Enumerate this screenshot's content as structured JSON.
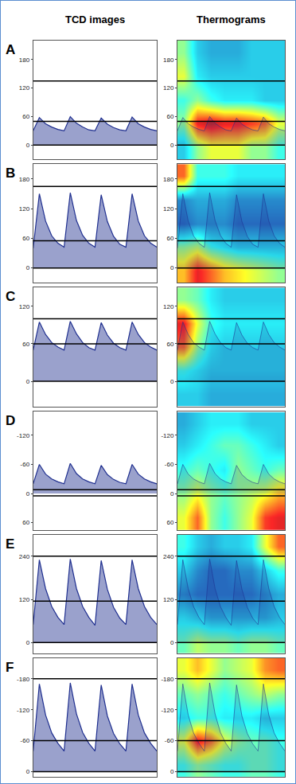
{
  "chart_data": [
    {
      "type": "line",
      "title": "TCD images",
      "annotations": [
        "A"
      ],
      "tick_labels": "y",
      "grid": false,
      "x": [
        0,
        0.2,
        0.4,
        0.6,
        0.8,
        1,
        1.2,
        1.4,
        1.6,
        1.8,
        2,
        2.2,
        2.4,
        2.6,
        2.8,
        3,
        3.2,
        3.4,
        3.6,
        3.8,
        4
      ],
      "xlim": [
        0,
        4
      ],
      "ylim": [
        -30,
        220
      ],
      "yticks": [
        0,
        60,
        120,
        180
      ],
      "reference_lines": [
        135,
        50,
        0
      ],
      "values": [
        30,
        58,
        45,
        38,
        33,
        30,
        60,
        46,
        38,
        32,
        30,
        57,
        44,
        37,
        32,
        30,
        59,
        45,
        38,
        33,
        30
      ],
      "color": "#1f2f8f"
    },
    {
      "type": "heatmap",
      "title": "Thermograms",
      "tick_labels": "y",
      "grid": false,
      "x": [
        0,
        0.2,
        0.4,
        0.6,
        0.8,
        1,
        1.2,
        1.4,
        1.6,
        1.8,
        2,
        2.2,
        2.4,
        2.6,
        2.8,
        3,
        3.2,
        3.4,
        3.6,
        3.8,
        4
      ],
      "xlim": [
        0,
        4
      ],
      "ylim": [
        -30,
        220
      ],
      "yticks": [
        0,
        60,
        120,
        180
      ],
      "reference_lines": [
        135,
        50,
        0
      ],
      "values": [
        30,
        58,
        45,
        38,
        33,
        30,
        60,
        46,
        38,
        32,
        30,
        57,
        44,
        37,
        32,
        30,
        59,
        45,
        38,
        33,
        30
      ],
      "color": "#1f2f8f",
      "heat_x": [
        0.25,
        0.75,
        1.25,
        1.75,
        2.25,
        2.75,
        3.25,
        3.75
      ],
      "heat_y": [
        -5,
        45,
        95,
        145,
        195
      ],
      "zlim": [
        0,
        1
      ],
      "z": [
        [
          0.3,
          0.5,
          0.6,
          0.6,
          0.6,
          0.5,
          0.5,
          0.4
        ],
        [
          0.5,
          0.9,
          0.95,
          0.9,
          0.9,
          0.85,
          0.8,
          0.6
        ],
        [
          0.4,
          0.5,
          0.4,
          0.35,
          0.35,
          0.35,
          0.3,
          0.3
        ],
        [
          0.6,
          0.35,
          0.3,
          0.3,
          0.3,
          0.3,
          0.3,
          0.3
        ],
        [
          0.5,
          0.3,
          0.25,
          0.25,
          0.25,
          0.3,
          0.3,
          0.3
        ]
      ]
    },
    {
      "type": "line",
      "annotations": [
        "B"
      ],
      "tick_labels": "y",
      "grid": false,
      "x": [
        0,
        0.2,
        0.4,
        0.6,
        0.8,
        1,
        1.2,
        1.4,
        1.6,
        1.8,
        2,
        2.2,
        2.4,
        2.6,
        2.8,
        3,
        3.2,
        3.4,
        3.6,
        3.8,
        4
      ],
      "xlim": [
        0,
        4
      ],
      "ylim": [
        -30,
        210
      ],
      "yticks": [
        0,
        60,
        120,
        180
      ],
      "reference_lines": [
        165,
        55,
        0
      ],
      "values": [
        40,
        150,
        95,
        65,
        50,
        42,
        152,
        96,
        66,
        50,
        42,
        148,
        94,
        64,
        48,
        42,
        150,
        95,
        65,
        50,
        42
      ],
      "color": "#1f2f8f"
    },
    {
      "type": "heatmap",
      "tick_labels": "y",
      "grid": false,
      "x": [
        0,
        0.2,
        0.4,
        0.6,
        0.8,
        1,
        1.2,
        1.4,
        1.6,
        1.8,
        2,
        2.2,
        2.4,
        2.6,
        2.8,
        3,
        3.2,
        3.4,
        3.6,
        3.8,
        4
      ],
      "xlim": [
        0,
        4
      ],
      "ylim": [
        -30,
        210
      ],
      "yticks": [
        0,
        60,
        120,
        180
      ],
      "reference_lines": [
        165,
        55,
        0
      ],
      "values": [
        40,
        150,
        95,
        65,
        50,
        42,
        152,
        96,
        66,
        50,
        42,
        148,
        94,
        64,
        48,
        42,
        150,
        95,
        65,
        50,
        42
      ],
      "color": "#1f2f8f",
      "heat_x": [
        0.25,
        0.75,
        1.25,
        1.75,
        2.25,
        2.75,
        3.25,
        3.75
      ],
      "heat_y": [
        -6,
        42,
        90,
        138,
        186
      ],
      "zlim": [
        0,
        1
      ],
      "z": [
        [
          0.7,
          0.9,
          0.8,
          0.7,
          0.65,
          0.6,
          0.55,
          0.5
        ],
        [
          0.5,
          0.55,
          0.4,
          0.35,
          0.3,
          0.3,
          0.3,
          0.3
        ],
        [
          0.15,
          0.2,
          0.2,
          0.2,
          0.15,
          0.15,
          0.15,
          0.15
        ],
        [
          0.2,
          0.25,
          0.25,
          0.25,
          0.2,
          0.2,
          0.2,
          0.2
        ],
        [
          0.8,
          0.4,
          0.4,
          0.4,
          0.35,
          0.35,
          0.35,
          0.35
        ]
      ]
    },
    {
      "type": "line",
      "annotations": [
        "C"
      ],
      "tick_labels": "y",
      "grid": false,
      "x": [
        0,
        0.2,
        0.4,
        0.6,
        0.8,
        1,
        1.2,
        1.4,
        1.6,
        1.8,
        2,
        2.2,
        2.4,
        2.6,
        2.8,
        3,
        3.2,
        3.4,
        3.6,
        3.8,
        4
      ],
      "xlim": [
        0,
        4
      ],
      "ylim": [
        -40,
        150
      ],
      "yticks": [
        0,
        60,
        120
      ],
      "reference_lines": [
        100,
        60,
        0
      ],
      "values": [
        50,
        95,
        75,
        62,
        55,
        50,
        96,
        76,
        62,
        54,
        50,
        94,
        74,
        61,
        54,
        50,
        95,
        75,
        62,
        55,
        50
      ],
      "color": "#1f2f8f"
    },
    {
      "type": "heatmap",
      "tick_labels": "y",
      "grid": false,
      "x": [
        0,
        0.2,
        0.4,
        0.6,
        0.8,
        1,
        1.2,
        1.4,
        1.6,
        1.8,
        2,
        2.2,
        2.4,
        2.6,
        2.8,
        3,
        3.2,
        3.4,
        3.6,
        3.8,
        4
      ],
      "xlim": [
        0,
        4
      ],
      "ylim": [
        -40,
        150
      ],
      "yticks": [
        0,
        60,
        120
      ],
      "reference_lines": [
        100,
        60,
        0
      ],
      "values": [
        50,
        95,
        75,
        62,
        55,
        50,
        96,
        76,
        62,
        54,
        50,
        94,
        74,
        61,
        54,
        50,
        95,
        75,
        62,
        55,
        50
      ],
      "color": "#1f2f8f",
      "heat_x": [
        0.25,
        0.75,
        1.25,
        1.75,
        2.25,
        2.75,
        3.25,
        3.75
      ],
      "heat_y": [
        -21,
        17,
        55,
        93,
        131
      ],
      "zlim": [
        0,
        1
      ],
      "z": [
        [
          0.3,
          0.3,
          0.25,
          0.25,
          0.25,
          0.25,
          0.25,
          0.25
        ],
        [
          0.4,
          0.35,
          0.3,
          0.3,
          0.3,
          0.3,
          0.3,
          0.3
        ],
        [
          0.8,
          0.5,
          0.35,
          0.3,
          0.3,
          0.3,
          0.3,
          0.3
        ],
        [
          0.9,
          0.6,
          0.4,
          0.35,
          0.35,
          0.35,
          0.35,
          0.35
        ],
        [
          0.5,
          0.45,
          0.35,
          0.3,
          0.3,
          0.3,
          0.3,
          0.3
        ]
      ]
    },
    {
      "type": "line",
      "annotations": [
        "D"
      ],
      "tick_labels": "y",
      "grid": false,
      "x": [
        0,
        0.2,
        0.4,
        0.6,
        0.8,
        1,
        1.2,
        1.4,
        1.6,
        1.8,
        2,
        2.2,
        2.4,
        2.6,
        2.8,
        3,
        3.2,
        3.4,
        3.6,
        3.8,
        4
      ],
      "xlim": [
        0,
        4
      ],
      "ylim": [
        75,
        -170
      ],
      "yticks": [
        -120,
        -60,
        0,
        60
      ],
      "reference_lines": [
        -8,
        5
      ],
      "values": [
        -20,
        -60,
        -40,
        -30,
        -24,
        -20,
        -62,
        -41,
        -30,
        -24,
        -20,
        -58,
        -39,
        -29,
        -23,
        -20,
        -60,
        -40,
        -30,
        -24,
        -20
      ],
      "color": "#1f2f8f"
    },
    {
      "type": "heatmap",
      "tick_labels": "y",
      "grid": false,
      "x": [
        0,
        0.2,
        0.4,
        0.6,
        0.8,
        1,
        1.2,
        1.4,
        1.6,
        1.8,
        2,
        2.2,
        2.4,
        2.6,
        2.8,
        3,
        3.2,
        3.4,
        3.6,
        3.8,
        4
      ],
      "xlim": [
        0,
        4
      ],
      "ylim": [
        75,
        -170
      ],
      "yticks": [
        -120,
        -60,
        0,
        60
      ],
      "reference_lines": [
        -8,
        5
      ],
      "values": [
        -20,
        -60,
        -40,
        -30,
        -24,
        -20,
        -62,
        -41,
        -30,
        -24,
        -20,
        -58,
        -39,
        -29,
        -23,
        -20,
        -60,
        -40,
        -30,
        -24,
        -20
      ],
      "color": "#1f2f8f",
      "heat_x": [
        0.25,
        0.75,
        1.25,
        1.75,
        2.25,
        2.75,
        3.25,
        3.75
      ],
      "heat_y": [
        50,
        0,
        -50,
        -100,
        -145
      ],
      "zlim": [
        0,
        1
      ],
      "z": [
        [
          0.6,
          0.8,
          0.5,
          0.4,
          0.5,
          0.6,
          0.85,
          0.9
        ],
        [
          0.5,
          0.6,
          0.5,
          0.45,
          0.5,
          0.55,
          0.6,
          0.7
        ],
        [
          0.4,
          0.45,
          0.4,
          0.35,
          0.5,
          0.45,
          0.4,
          0.45
        ],
        [
          0.3,
          0.35,
          0.4,
          0.45,
          0.45,
          0.4,
          0.35,
          0.3
        ],
        [
          0.25,
          0.3,
          0.35,
          0.35,
          0.35,
          0.3,
          0.3,
          0.3
        ]
      ]
    },
    {
      "type": "line",
      "annotations": [
        "E"
      ],
      "tick_labels": "y",
      "grid": false,
      "x": [
        0,
        0.2,
        0.4,
        0.6,
        0.8,
        1,
        1.2,
        1.4,
        1.6,
        1.8,
        2,
        2.2,
        2.4,
        2.6,
        2.8,
        3,
        3.2,
        3.4,
        3.6,
        3.8,
        4
      ],
      "xlim": [
        0,
        4
      ],
      "ylim": [
        -30,
        300
      ],
      "yticks": [
        0,
        120,
        240
      ],
      "reference_lines": [
        240,
        115,
        0
      ],
      "values": [
        50,
        230,
        150,
        100,
        70,
        50,
        232,
        150,
        100,
        70,
        48,
        228,
        148,
        98,
        68,
        50,
        230,
        150,
        100,
        70,
        50
      ],
      "color": "#1f2f8f"
    },
    {
      "type": "heatmap",
      "tick_labels": "y",
      "grid": false,
      "x": [
        0,
        0.2,
        0.4,
        0.6,
        0.8,
        1,
        1.2,
        1.4,
        1.6,
        1.8,
        2,
        2.2,
        2.4,
        2.6,
        2.8,
        3,
        3.2,
        3.4,
        3.6,
        3.8,
        4
      ],
      "xlim": [
        0,
        4
      ],
      "ylim": [
        -30,
        300
      ],
      "yticks": [
        0,
        120,
        240
      ],
      "reference_lines": [
        240,
        115,
        0
      ],
      "values": [
        50,
        230,
        150,
        100,
        70,
        50,
        232,
        150,
        100,
        70,
        48,
        228,
        148,
        98,
        68,
        50,
        230,
        150,
        100,
        70,
        50
      ],
      "color": "#1f2f8f",
      "heat_x": [
        0.25,
        0.75,
        1.25,
        1.75,
        2.25,
        2.75,
        3.25,
        3.75
      ],
      "heat_y": [
        3,
        69,
        135,
        201,
        267
      ],
      "zlim": [
        0,
        1
      ],
      "z": [
        [
          0.45,
          0.55,
          0.5,
          0.5,
          0.45,
          0.5,
          0.5,
          0.45
        ],
        [
          0.35,
          0.3,
          0.25,
          0.25,
          0.25,
          0.25,
          0.25,
          0.3
        ],
        [
          0.2,
          0.15,
          0.15,
          0.15,
          0.15,
          0.15,
          0.2,
          0.25
        ],
        [
          0.3,
          0.2,
          0.15,
          0.15,
          0.2,
          0.2,
          0.3,
          0.4
        ],
        [
          0.4,
          0.3,
          0.25,
          0.3,
          0.3,
          0.35,
          0.6,
          0.8
        ]
      ]
    },
    {
      "type": "line",
      "annotations": [
        "F"
      ],
      "tick_labels": "y",
      "grid": false,
      "x": [
        0,
        0.2,
        0.4,
        0.6,
        0.8,
        1,
        1.2,
        1.4,
        1.6,
        1.8,
        2,
        2.2,
        2.4,
        2.6,
        2.8,
        3,
        3.2,
        3.4,
        3.6,
        3.8,
        4
      ],
      "xlim": [
        0,
        4
      ],
      "ylim": [
        10,
        -220
      ],
      "yticks": [
        -180,
        -120,
        -60,
        0
      ],
      "reference_lines": [
        -180,
        -60,
        0
      ],
      "values": [
        -40,
        -170,
        -110,
        -75,
        -55,
        -40,
        -172,
        -112,
        -76,
        -55,
        -40,
        -168,
        -108,
        -74,
        -54,
        -40,
        -170,
        -110,
        -75,
        -55,
        -40
      ],
      "color": "#1f2f8f"
    },
    {
      "type": "heatmap",
      "tick_labels": "y",
      "grid": false,
      "x": [
        0,
        0.2,
        0.4,
        0.6,
        0.8,
        1,
        1.2,
        1.4,
        1.6,
        1.8,
        2,
        2.2,
        2.4,
        2.6,
        2.8,
        3,
        3.2,
        3.4,
        3.6,
        3.8,
        4
      ],
      "xlim": [
        0,
        4
      ],
      "ylim": [
        10,
        -220
      ],
      "yticks": [
        -180,
        -120,
        -60,
        0
      ],
      "reference_lines": [
        -180,
        -60,
        0
      ],
      "values": [
        -40,
        -170,
        -110,
        -75,
        -55,
        -40,
        -172,
        -112,
        -76,
        -55,
        -40,
        -168,
        -108,
        -74,
        -54,
        -40,
        -170,
        -110,
        -75,
        -55,
        -40
      ],
      "color": "#1f2f8f",
      "heat_x": [
        0.25,
        0.75,
        1.25,
        1.75,
        2.25,
        2.75,
        3.25,
        3.75
      ],
      "heat_y": [
        -13,
        -59,
        -105,
        -151,
        -197
      ],
      "zlim": [
        0,
        1
      ],
      "z": [
        [
          0.4,
          0.5,
          0.45,
          0.4,
          0.4,
          0.45,
          0.45,
          0.4
        ],
        [
          0.6,
          0.9,
          0.8,
          0.6,
          0.5,
          0.45,
          0.45,
          0.4
        ],
        [
          0.35,
          0.4,
          0.4,
          0.35,
          0.35,
          0.35,
          0.3,
          0.3
        ],
        [
          0.45,
          0.5,
          0.45,
          0.4,
          0.45,
          0.5,
          0.55,
          0.5
        ],
        [
          0.6,
          0.7,
          0.6,
          0.5,
          0.55,
          0.6,
          0.75,
          0.8
        ]
      ]
    }
  ]
}
